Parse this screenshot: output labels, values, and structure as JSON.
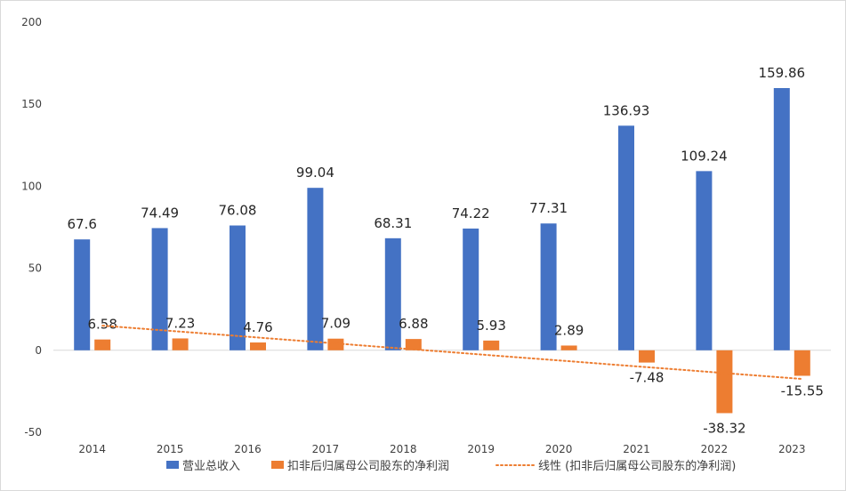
{
  "chart_data": {
    "type": "bar",
    "title": "",
    "xlabel": "",
    "ylabel": "",
    "ylim": [
      -50,
      200
    ],
    "yticks": [
      -50,
      0,
      50,
      100,
      150,
      200
    ],
    "grid": false,
    "legend_position": "bottom",
    "categories": [
      "2014",
      "2015",
      "2016",
      "2017",
      "2018",
      "2019",
      "2020",
      "2021",
      "2022",
      "2023"
    ],
    "series": [
      {
        "name": "营业总收入",
        "color": "#4472C4",
        "values": [
          67.6,
          74.49,
          76.08,
          99.04,
          68.31,
          74.22,
          77.31,
          136.93,
          109.24,
          159.86
        ],
        "labels": [
          "67.6",
          "74.49",
          "76.08",
          "99.04",
          "68.31",
          "74.22",
          "77.31",
          "136.93",
          "109.24",
          "159.86"
        ]
      },
      {
        "name": "扣非后归属母公司股东的净利润",
        "color": "#ED7D31",
        "values": [
          6.58,
          7.23,
          4.76,
          7.09,
          6.88,
          5.93,
          2.89,
          -7.48,
          -38.32,
          -15.55
        ],
        "labels": [
          "6.58",
          "7.23",
          "4.76",
          "7.09",
          "6.88",
          "5.93",
          "2.89",
          "-7.48",
          "-38.32",
          "-15.55"
        ]
      }
    ],
    "trendline": {
      "name": "线性 (扣非后归属母公司股东的净利润)",
      "color": "#ED7D31",
      "style": "dotted",
      "start_value": 15.0,
      "end_value": -17.5
    }
  }
}
